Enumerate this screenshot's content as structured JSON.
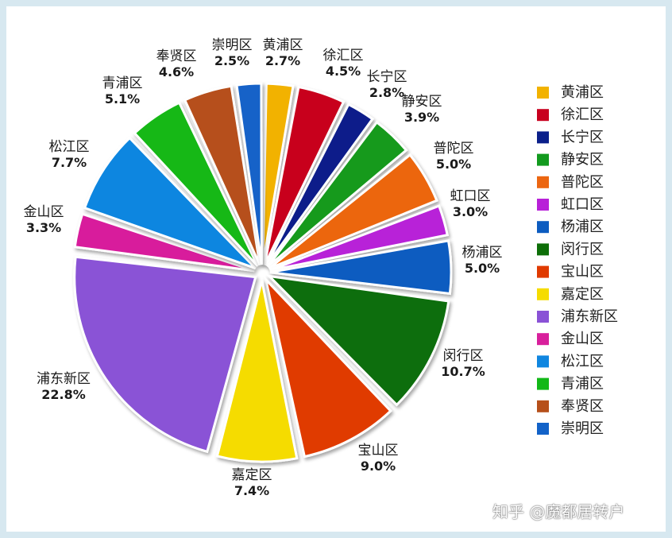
{
  "chart_data": {
    "type": "pie",
    "slices": [
      {
        "label": "黄浦区",
        "pct_text": "2.7%",
        "value": 2.7,
        "color": "#f2b200"
      },
      {
        "label": "徐汇区",
        "pct_text": "4.5%",
        "value": 4.5,
        "color": "#c8001e"
      },
      {
        "label": "长宁区",
        "pct_text": "2.8%",
        "value": 2.8,
        "color": "#0a1f8a"
      },
      {
        "label": "静安区",
        "pct_text": "3.9%",
        "value": 3.9,
        "color": "#129a1e"
      },
      {
        "label": "普陀区",
        "pct_text": "5.0%",
        "value": 5.0,
        "color": "#ec6611"
      },
      {
        "label": "虹口区",
        "pct_text": "3.0%",
        "value": 3.0,
        "color": "#b820d8"
      },
      {
        "label": "杨浦区",
        "pct_text": "5.0%",
        "value": 5.0,
        "color": "#0c5cc0"
      },
      {
        "label": "闵行区",
        "pct_text": "10.7%",
        "value": 10.7,
        "color": "#0d6e08"
      },
      {
        "label": "宝山区",
        "pct_text": "9.0%",
        "value": 9.0,
        "color": "#e03a00"
      },
      {
        "label": "嘉定区",
        "pct_text": "7.4%",
        "value": 7.4,
        "color": "#f5dc00"
      },
      {
        "label": "浦东新区",
        "pct_text": "22.8%",
        "value": 22.8,
        "color": "#8a52d6"
      },
      {
        "label": "金山区",
        "pct_text": "3.3%",
        "value": 3.3,
        "color": "#d81f9c"
      },
      {
        "label": "松江区",
        "pct_text": "7.7%",
        "value": 7.7,
        "color": "#0f86e0"
      },
      {
        "label": "青浦区",
        "pct_text": "5.1%",
        "value": 5.1,
        "color": "#12b818"
      },
      {
        "label": "奉贤区",
        "pct_text": "4.6%",
        "value": 4.6,
        "color": "#b6501a"
      },
      {
        "label": "崇明区",
        "pct_text": "2.5%",
        "value": 2.5,
        "color": "#1262c8"
      }
    ],
    "legend_placement": "right",
    "exploded": true
  },
  "watermark": "知乎 @魔都居转户"
}
